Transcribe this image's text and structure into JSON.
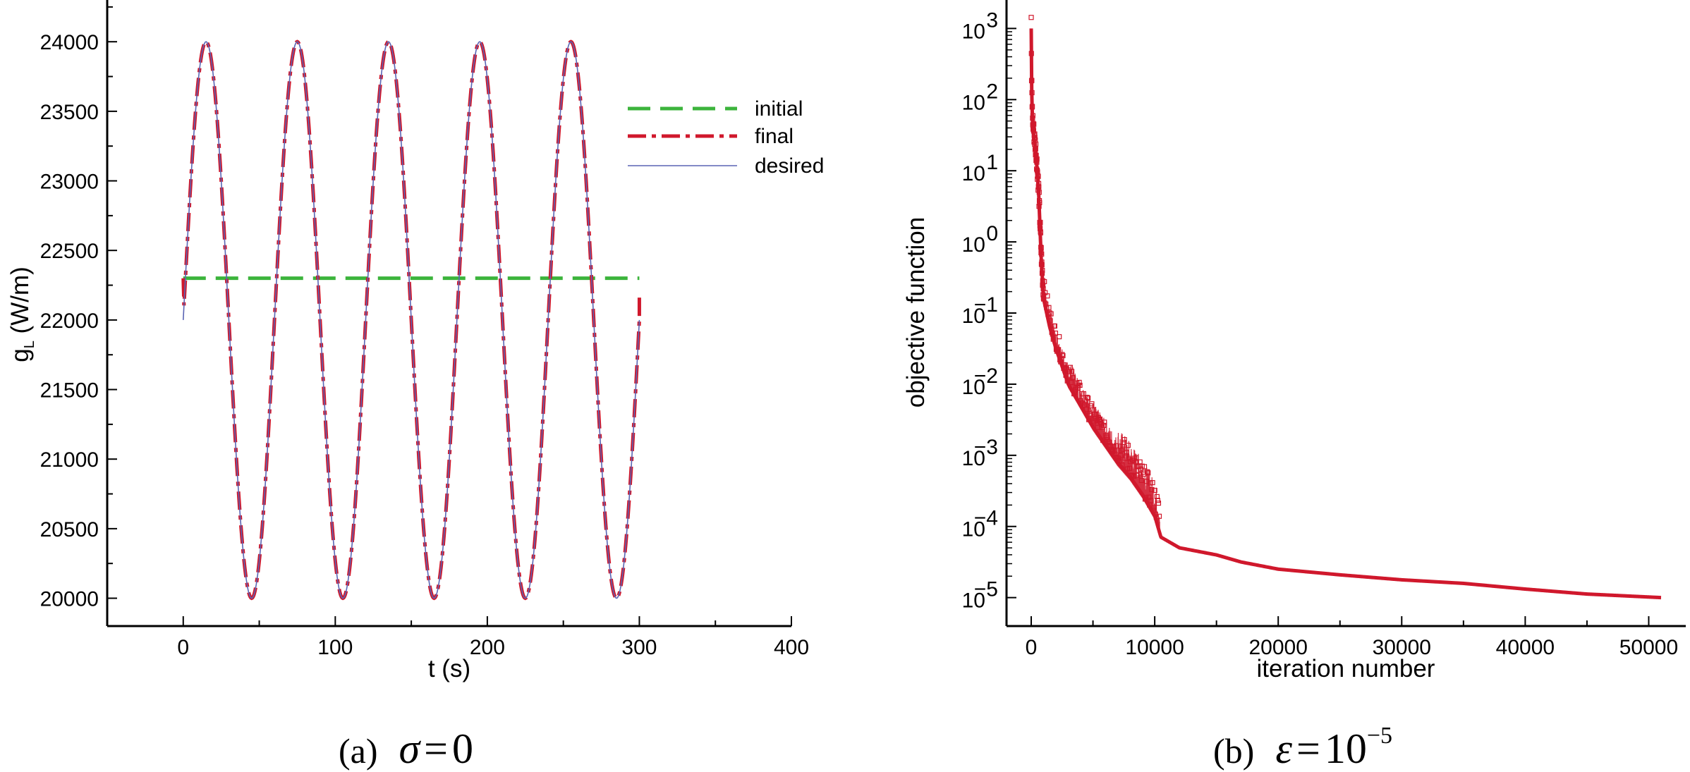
{
  "chart_data": [
    {
      "type": "line",
      "panel": "a",
      "xlabel": "t (s)",
      "ylabel": "g",
      "ylabel_sub": "L",
      "ylabel_unit": " (W/m)",
      "xlim": [
        -50,
        400
      ],
      "ylim": [
        19800,
        24300
      ],
      "xticks": [
        0,
        100,
        200,
        300,
        400
      ],
      "yticks": [
        20000,
        20500,
        21000,
        21500,
        22000,
        22500,
        23000,
        23500,
        24000
      ],
      "series": [
        {
          "name": "initial",
          "color": "#3cb43c",
          "style": "dashed",
          "x": [
            0,
            300
          ],
          "y": [
            22300,
            22300
          ]
        },
        {
          "name": "final",
          "color": "#d0182c",
          "style": "dash-dot",
          "func": {
            "kind": "sine",
            "offset": 22000,
            "amplitude": 2000,
            "period_s": 60,
            "t_start": 0,
            "t_end": 300
          },
          "start_value": 22300,
          "end_value": 22200
        },
        {
          "name": "desired",
          "color": "#5a64b4",
          "style": "solid",
          "func": {
            "kind": "sine",
            "offset": 22000,
            "amplitude": 2000,
            "period_s": 60,
            "t_start": 0,
            "t_end": 300
          }
        }
      ],
      "legend": {
        "placement": "top-right",
        "entries": [
          "initial",
          "final",
          "desired"
        ]
      },
      "caption": {
        "label": "(a)",
        "symbol": "σ",
        "equals": "=",
        "value": "0"
      }
    },
    {
      "type": "scatter",
      "panel": "b",
      "yscale": "log",
      "xlabel": "iteration number",
      "ylabel": "objective function",
      "xlim": [
        -2000,
        53000
      ],
      "ylim_exp": [
        -5.4,
        3.4
      ],
      "xticks": [
        0,
        10000,
        20000,
        30000,
        40000,
        50000
      ],
      "yticks_exp": [
        3,
        2,
        1,
        0,
        -1,
        -2,
        -3,
        -4,
        -5
      ],
      "ytick_base": "10",
      "series": [
        {
          "name": "objective function",
          "color": "#d0182c",
          "marker": "square",
          "x": [
            0,
            30,
            100,
            200,
            400,
            600,
            800,
            1000,
            1500,
            2000,
            2500,
            3000,
            4000,
            5000,
            6000,
            7000,
            8000,
            9000,
            10000,
            10500,
            12000,
            15000,
            17000,
            20000,
            25000,
            30000,
            35000,
            40000,
            45000,
            51000
          ],
          "log10y": [
            3.0,
            2.2,
            1.7,
            1.5,
            1.2,
            0.7,
            -0.2,
            -0.8,
            -1.2,
            -1.5,
            -1.75,
            -2.0,
            -2.3,
            -2.6,
            -2.85,
            -3.1,
            -3.3,
            -3.55,
            -3.85,
            -4.15,
            -4.3,
            -4.4,
            -4.5,
            -4.6,
            -4.68,
            -4.75,
            -4.8,
            -4.88,
            -4.95,
            -5.0
          ]
        }
      ],
      "caption": {
        "label": "(b)",
        "symbol": "ε",
        "equals": "=",
        "base": "10",
        "exponent": "−5"
      }
    }
  ]
}
